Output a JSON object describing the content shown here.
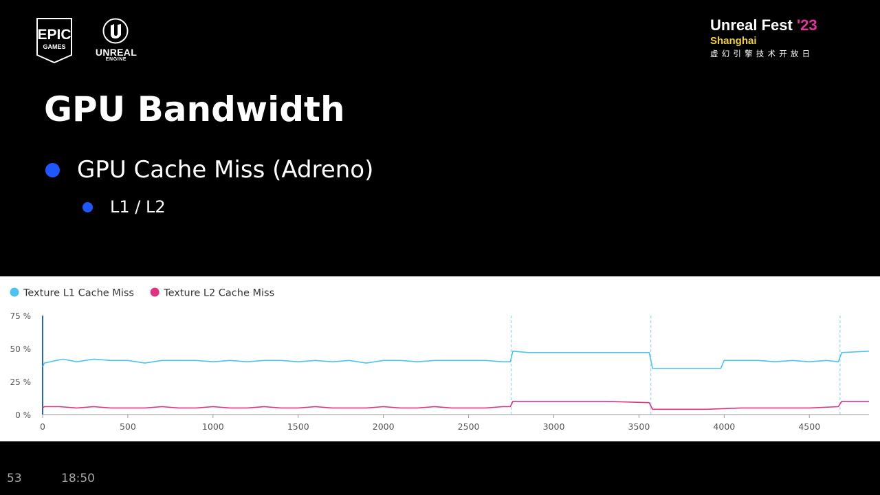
{
  "branding": {
    "epic_line1": "EPIC",
    "epic_line2": "GAMES",
    "unreal_word": "UNREAL",
    "unreal_sub": "ENGINE",
    "fest_name": "Unreal Fest ",
    "fest_year": "'23",
    "fest_city": "Shanghai",
    "fest_subtitle": "虚幻引擎技术开放日",
    "colors": {
      "fest_year": "#e6339b",
      "fest_city": "#f2d22c",
      "bullet": "#1f57ff"
    }
  },
  "slide": {
    "title": "GPU Bandwidth",
    "bullet_1": "GPU Cache Miss (Adreno)",
    "bullet_2": "L1 / L2"
  },
  "footer": {
    "page_number": "53",
    "time": "18:50"
  },
  "chart_data": {
    "type": "line",
    "ylim": [
      0,
      75
    ],
    "xlim": [
      0,
      4850
    ],
    "y_ticks": [
      "0 %",
      "25 %",
      "50 %",
      "75 %"
    ],
    "y_tick_values": [
      0,
      25,
      50,
      75
    ],
    "x_ticks": [
      "0",
      "500",
      "1000",
      "1500",
      "2000",
      "2500",
      "3000",
      "3500",
      "4000",
      "4500"
    ],
    "x_tick_values": [
      0,
      500,
      1000,
      1500,
      2000,
      2500,
      3000,
      3500,
      4000,
      4500
    ],
    "grid": false,
    "legend_position": "top-left",
    "markers_x": [
      2750,
      3570,
      4680
    ],
    "series": [
      {
        "name": "Texture L1 Cache Miss",
        "color": "#4cc3f0",
        "x": [
          0,
          10,
          80,
          120,
          200,
          300,
          400,
          500,
          600,
          700,
          800,
          900,
          1000,
          1100,
          1200,
          1300,
          1400,
          1500,
          1600,
          1700,
          1800,
          1900,
          2000,
          2100,
          2200,
          2300,
          2400,
          2500,
          2600,
          2700,
          2745,
          2760,
          2850,
          3000,
          3200,
          3400,
          3560,
          3580,
          3700,
          3850,
          3980,
          4000,
          4100,
          4200,
          4300,
          4400,
          4500,
          4600,
          4670,
          4690,
          4850
        ],
        "y": [
          36,
          39,
          41,
          42,
          40,
          42,
          41,
          41,
          39,
          41,
          41,
          41,
          40,
          41,
          40,
          41,
          41,
          40,
          41,
          40,
          41,
          39,
          41,
          41,
          40,
          41,
          41,
          41,
          41,
          40,
          40,
          48,
          47,
          47,
          47,
          47,
          47,
          35,
          35,
          35,
          35,
          41,
          41,
          41,
          40,
          41,
          40,
          41,
          40,
          47,
          48
        ]
      },
      {
        "name": "Texture L2 Cache Miss",
        "color": "#e0327f",
        "x": [
          0,
          10,
          100,
          200,
          300,
          400,
          500,
          600,
          700,
          800,
          900,
          1000,
          1100,
          1200,
          1300,
          1400,
          1500,
          1600,
          1700,
          1800,
          1900,
          2000,
          2100,
          2200,
          2300,
          2400,
          2500,
          2600,
          2700,
          2745,
          2760,
          2900,
          3100,
          3300,
          3560,
          3580,
          3700,
          3900,
          4100,
          4300,
          4500,
          4670,
          4690,
          4850
        ],
        "y": [
          5,
          6,
          6,
          5,
          6,
          5,
          5,
          5,
          6,
          5,
          5,
          6,
          5,
          5,
          6,
          5,
          5,
          6,
          5,
          5,
          5,
          6,
          5,
          5,
          6,
          5,
          5,
          5,
          6,
          6,
          10,
          10,
          10,
          10,
          9,
          4,
          4,
          4,
          5,
          5,
          5,
          6,
          10,
          10
        ]
      }
    ]
  }
}
